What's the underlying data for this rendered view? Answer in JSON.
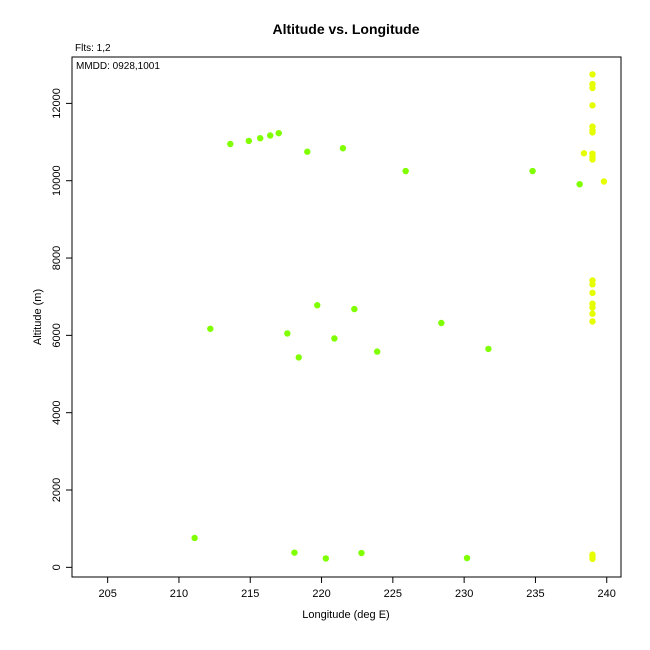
{
  "chart_data": {
    "type": "scatter",
    "title": "Altitude vs. Longitude",
    "xlabel": "Longitude (deg E)",
    "ylabel": "Altitude (m)",
    "xlim": [
      202.5,
      241.0
    ],
    "ylim": [
      -250,
      13200
    ],
    "xticks": [
      205,
      210,
      215,
      220,
      225,
      230,
      235,
      240
    ],
    "yticks": [
      0,
      2000,
      4000,
      6000,
      8000,
      10000,
      12000
    ],
    "grid": false,
    "annotations": {
      "flts": "Flts: 1,2",
      "mmdd": "MMDD: 0928,1001"
    },
    "series": [
      {
        "color": "#7fff00",
        "points": [
          [
            213.6,
            10950
          ],
          [
            214.9,
            11030
          ],
          [
            215.7,
            11100
          ],
          [
            216.4,
            11170
          ],
          [
            217.0,
            11230
          ],
          [
            219.0,
            10750
          ],
          [
            221.5,
            10840
          ],
          [
            225.9,
            10250
          ],
          [
            234.8,
            10250
          ],
          [
            238.1,
            9910
          ],
          [
            212.2,
            6170
          ],
          [
            217.6,
            6050
          ],
          [
            218.4,
            5430
          ],
          [
            219.7,
            6780
          ],
          [
            220.9,
            5920
          ],
          [
            222.3,
            6680
          ],
          [
            223.9,
            5580
          ],
          [
            228.4,
            6320
          ],
          [
            231.7,
            5650
          ],
          [
            211.1,
            760
          ],
          [
            218.1,
            380
          ],
          [
            220.3,
            230
          ],
          [
            222.8,
            370
          ],
          [
            230.2,
            240
          ]
        ]
      },
      {
        "color": "#e5ff00",
        "points": [
          [
            239.0,
            12750
          ],
          [
            239.0,
            12500
          ],
          [
            239.0,
            12400
          ],
          [
            239.0,
            11950
          ],
          [
            239.0,
            11400
          ],
          [
            239.0,
            11300
          ],
          [
            239.0,
            11250
          ],
          [
            239.0,
            10700
          ],
          [
            239.0,
            10620
          ],
          [
            239.0,
            10550
          ],
          [
            238.4,
            10710
          ],
          [
            239.8,
            9980
          ],
          [
            239.0,
            7420
          ],
          [
            239.0,
            7320
          ],
          [
            239.0,
            7100
          ],
          [
            239.0,
            6820
          ],
          [
            239.0,
            6720
          ],
          [
            239.0,
            6560
          ],
          [
            239.0,
            6360
          ],
          [
            239.0,
            330
          ],
          [
            239.0,
            270
          ],
          [
            239.0,
            220
          ]
        ]
      }
    ]
  }
}
